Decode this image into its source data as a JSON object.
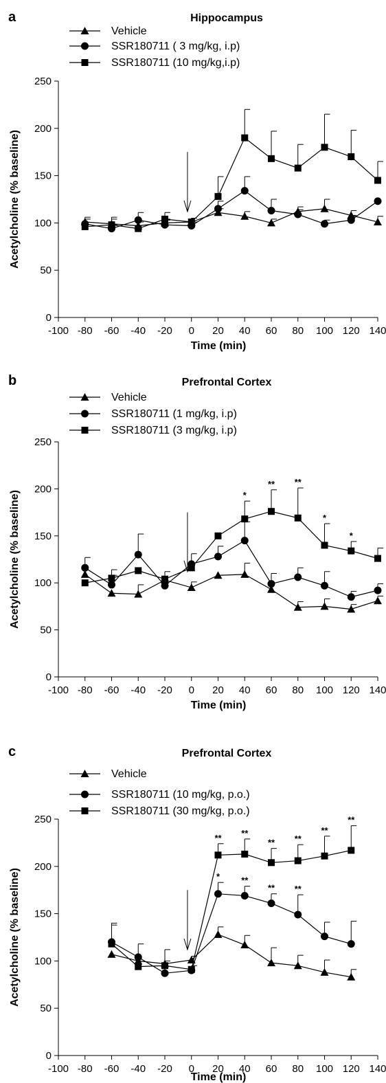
{
  "chart_data": [
    {
      "panel": "a",
      "type": "line",
      "title": "Hippocampus",
      "xlabel": "Time (min)",
      "ylabel": "Acetylcholine (% baseline)",
      "xlim": [
        -100,
        140
      ],
      "ylim": [
        0,
        250
      ],
      "x_ticks": [
        "-100",
        "-80",
        "-60",
        "-40",
        "-20",
        "0",
        "20",
        "40",
        "60",
        "80",
        "100",
        "120",
        "140"
      ],
      "y_ticks": [
        "0",
        "50",
        "100",
        "150",
        "200",
        "250"
      ],
      "grid": false,
      "injection_arrow_x": -3,
      "series": [
        {
          "name": "Vehicle",
          "marker": "triangle",
          "x": [
            -80,
            -60,
            -40,
            -20,
            0,
            20,
            40,
            60,
            80,
            100,
            120,
            140
          ],
          "y": [
            101,
            99,
            97,
            100,
            101,
            111,
            107,
            100,
            112,
            115,
            108,
            101
          ],
          "err": [
            5,
            5,
            4,
            4,
            4,
            4,
            5,
            4,
            5,
            10,
            5,
            6
          ],
          "sig": []
        },
        {
          "name": "SSR180711 ( 3 mg/kg, i.p)",
          "marker": "circle",
          "x": [
            -80,
            -60,
            -40,
            -20,
            0,
            20,
            40,
            60,
            80,
            100,
            120,
            140
          ],
          "y": [
            99,
            94,
            103,
            98,
            97,
            115,
            134,
            113,
            109,
            99,
            103,
            123
          ],
          "err": [
            5,
            4,
            8,
            5,
            4,
            8,
            15,
            12,
            5,
            4,
            5,
            0
          ],
          "sig": []
        },
        {
          "name": "SSR180711 (10 mg/kg,i.p)",
          "marker": "square",
          "x": [
            -80,
            -60,
            -40,
            -20,
            0,
            20,
            40,
            60,
            80,
            100,
            120,
            140
          ],
          "y": [
            96,
            98,
            94,
            104,
            101,
            128,
            190,
            168,
            158,
            180,
            170,
            145
          ],
          "err": [
            0,
            8,
            0,
            7,
            4,
            21,
            30,
            29,
            25,
            35,
            28,
            20
          ],
          "sig": []
        }
      ]
    },
    {
      "panel": "b",
      "type": "line",
      "title": "Prefrontal Cortex",
      "xlabel": "Time (min)",
      "ylabel": "Acetylcholine (% baseline)",
      "xlim": [
        -100,
        140
      ],
      "ylim": [
        0,
        250
      ],
      "x_ticks": [
        "-100",
        "-80",
        "-60",
        "-40",
        "-20",
        "0",
        "20",
        "40",
        "60",
        "80",
        "100",
        "120",
        "140"
      ],
      "y_ticks": [
        "0",
        "50",
        "100",
        "150",
        "200",
        "250"
      ],
      "grid": false,
      "injection_arrow_x": -3,
      "series": [
        {
          "name": "Vehicle",
          "marker": "triangle",
          "x": [
            -80,
            -60,
            -40,
            -20,
            0,
            20,
            40,
            60,
            80,
            100,
            120,
            140
          ],
          "y": [
            109,
            89,
            88,
            103,
            95,
            108,
            109,
            93,
            74,
            75,
            72,
            81
          ],
          "err": [
            0,
            0,
            10,
            0,
            6,
            0,
            12,
            0,
            6,
            8,
            5,
            5
          ],
          "sig": []
        },
        {
          "name": "SSR180711 (1 mg/kg, i.p)",
          "marker": "circle",
          "x": [
            -80,
            -60,
            -40,
            -20,
            0,
            20,
            40,
            60,
            80,
            100,
            120,
            140
          ],
          "y": [
            116,
            98,
            130,
            97,
            120,
            128,
            145,
            99,
            106,
            97,
            85,
            92
          ],
          "err": [
            11,
            10,
            22,
            15,
            11,
            11,
            20,
            11,
            10,
            15,
            6,
            7
          ],
          "sig": []
        },
        {
          "name": "SSR180711 (3 mg/kg, i.p)",
          "marker": "square",
          "x": [
            -80,
            -60,
            -40,
            -20,
            0,
            20,
            40,
            60,
            80,
            100,
            120,
            140
          ],
          "y": [
            100,
            105,
            113,
            104,
            116,
            150,
            168,
            176,
            169,
            140,
            134,
            126
          ],
          "err": [
            0,
            9,
            0,
            0,
            0,
            0,
            19,
            23,
            32,
            23,
            10,
            11
          ],
          "sig": [
            "",
            "",
            "",
            "",
            "",
            "",
            "*",
            "**",
            "**",
            "*",
            "*",
            ""
          ]
        }
      ]
    },
    {
      "panel": "c",
      "type": "line",
      "title": "Prefrontal Cortex",
      "xlabel": "Time (min)",
      "ylabel": "Acetylcholine (% baseline)",
      "xlim": [
        -100,
        140
      ],
      "ylim": [
        0,
        250
      ],
      "x_ticks": [
        "-100",
        "-80",
        "-60",
        "-40",
        "-20",
        "0",
        "20",
        "40",
        "60",
        "80",
        "100",
        "120",
        "140"
      ],
      "y_ticks": [
        "0",
        "50",
        "100",
        "150",
        "200",
        "250"
      ],
      "grid": false,
      "injection_arrow_x": -3,
      "series": [
        {
          "name": "Vehicle",
          "marker": "triangle",
          "x": [
            -60,
            -40,
            -20,
            0,
            20,
            40,
            60,
            80,
            100,
            120
          ],
          "y": [
            107,
            100,
            97,
            101,
            128,
            117,
            98,
            95,
            88,
            83
          ],
          "err": [
            0,
            0,
            0,
            4,
            8,
            10,
            16,
            11,
            13,
            8
          ],
          "sig": []
        },
        {
          "name": "SSR180711 (10 mg/kg, p.o.)",
          "marker": "circle",
          "x": [
            -60,
            -40,
            -20,
            0,
            20,
            40,
            60,
            80,
            100,
            120
          ],
          "y": [
            120,
            104,
            87,
            90,
            171,
            169,
            161,
            149,
            126,
            118
          ],
          "err": [
            18,
            14,
            13,
            5,
            12,
            10,
            10,
            21,
            15,
            24
          ],
          "sig": [
            "",
            "",
            "",
            "",
            "*",
            "**",
            "**",
            "**",
            "",
            ""
          ]
        },
        {
          "name": "SSR180711 (30 mg/kg, p.o.)",
          "marker": "square",
          "x": [
            -60,
            -40,
            -20,
            0,
            20,
            40,
            60,
            80,
            100,
            120
          ],
          "y": [
            118,
            94,
            95,
            91,
            212,
            213,
            204,
            206,
            211,
            217
          ],
          "err": [
            22,
            0,
            17,
            0,
            12,
            16,
            15,
            17,
            21,
            26
          ],
          "sig": [
            "",
            "",
            "",
            "",
            "**",
            "**",
            "**",
            "**",
            "**",
            "**"
          ]
        }
      ]
    }
  ]
}
